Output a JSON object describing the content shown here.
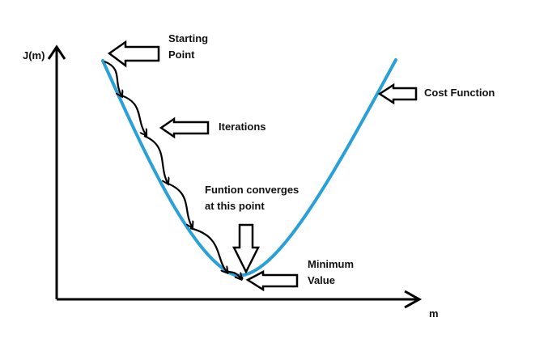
{
  "axes": {
    "y_label": "J(m)",
    "x_label": "m"
  },
  "labels": {
    "starting_point_line1": "Starting",
    "starting_point_line2": "Point",
    "iterations": "Iterations",
    "cost_function": "Cost Function",
    "converges_line1": "Funtion converges",
    "converges_line2": "at this point",
    "minimum_line1": "Minimum",
    "minimum_line2": "Value"
  },
  "colors": {
    "curve": "#2aa0d8",
    "ink": "#000000",
    "background": "#ffffff"
  },
  "step_count": 6
}
